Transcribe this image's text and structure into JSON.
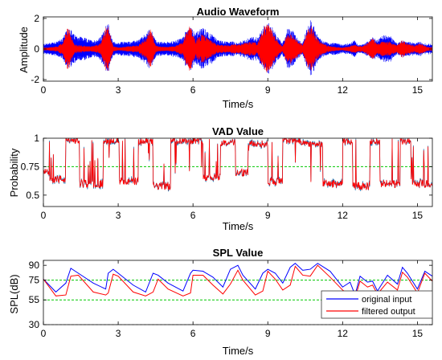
{
  "chart_data": [
    {
      "type": "line",
      "title": "Audio Waveform",
      "xlabel": "Time/s",
      "ylabel": "Amplitude",
      "xlim": [
        0,
        15.6
      ],
      "ylim": [
        -2.1,
        2.1
      ],
      "xticks": [
        0,
        3,
        6,
        9,
        12,
        15
      ],
      "yticks": [
        -2,
        0,
        2
      ],
      "colors": {
        "original": "#0000ff",
        "filtered": "#ff0000"
      },
      "series": [
        {
          "values_note_name": "envelope",
          "t": [
            0.0,
            0.2,
            0.4,
            0.6,
            0.8,
            0.9,
            1.0,
            1.1,
            1.2,
            1.3,
            1.5,
            1.7,
            1.9,
            2.1,
            2.3,
            2.5,
            2.6,
            2.7,
            2.8,
            3.0,
            3.2,
            3.5,
            3.8,
            4.1,
            4.3,
            4.4,
            4.5,
            4.6,
            4.8,
            5.0,
            5.3,
            5.6,
            5.8,
            5.9,
            6.0,
            6.1,
            6.2,
            6.4,
            6.6,
            6.8,
            7.0,
            7.3,
            7.6,
            7.8,
            7.9,
            8.1,
            8.3,
            8.6,
            8.8,
            8.9,
            9.0,
            9.2,
            9.4,
            9.6,
            9.8,
            10.0,
            10.2,
            10.4,
            10.6,
            10.7,
            10.8,
            10.9,
            11.1,
            11.3,
            11.5,
            11.7,
            12.0,
            12.3,
            12.5,
            12.6,
            12.8,
            13.0,
            13.2,
            13.4,
            13.6,
            13.9,
            14.1,
            14.2,
            14.4,
            14.6,
            14.9,
            15.1,
            15.2,
            15.4,
            15.6
          ],
          "blue": [
            0.35,
            0.4,
            0.5,
            0.55,
            0.8,
            1.1,
            1.55,
            1.3,
            1.0,
            0.9,
            0.85,
            0.7,
            0.6,
            0.6,
            0.8,
            1.5,
            1.7,
            1.0,
            0.5,
            0.4,
            0.5,
            0.5,
            0.6,
            1.0,
            1.4,
            1.0,
            0.6,
            0.5,
            0.45,
            0.5,
            0.55,
            0.8,
            1.5,
            1.6,
            1.3,
            1.1,
            1.2,
            1.4,
            1.2,
            0.9,
            0.6,
            0.5,
            0.5,
            0.4,
            0.5,
            0.6,
            0.8,
            0.8,
            1.4,
            1.7,
            1.8,
            1.4,
            0.8,
            0.4,
            1.4,
            1.2,
            0.7,
            0.4,
            1.6,
            1.9,
            1.8,
            1.2,
            0.7,
            0.5,
            0.4,
            0.4,
            0.3,
            0.4,
            0.6,
            0.3,
            0.3,
            0.5,
            0.8,
            0.6,
            0.9,
            0.9,
            0.5,
            0.4,
            0.6,
            0.5,
            0.4,
            0.5,
            0.4,
            0.35,
            0.35
          ],
          "red": [
            0.1,
            0.1,
            0.15,
            0.2,
            0.5,
            1.1,
            1.5,
            1.0,
            0.5,
            0.3,
            0.25,
            0.2,
            0.2,
            0.25,
            0.4,
            1.4,
            1.6,
            0.8,
            0.2,
            0.1,
            0.15,
            0.2,
            0.25,
            0.7,
            1.4,
            0.8,
            0.25,
            0.2,
            0.15,
            0.15,
            0.2,
            0.5,
            1.4,
            1.5,
            1.0,
            0.5,
            0.8,
            1.0,
            0.7,
            0.5,
            0.3,
            0.25,
            0.3,
            0.3,
            0.35,
            0.4,
            0.5,
            0.4,
            1.2,
            1.6,
            1.7,
            1.1,
            0.5,
            0.2,
            1.1,
            1.0,
            0.5,
            0.3,
            1.3,
            1.6,
            1.5,
            0.9,
            0.5,
            0.3,
            0.2,
            0.15,
            0.1,
            0.2,
            0.3,
            0.2,
            0.2,
            0.4,
            0.7,
            0.4,
            0.5,
            0.5,
            0.3,
            0.3,
            0.6,
            0.35,
            0.25,
            0.4,
            0.3,
            0.15,
            0.1
          ]
        }
      ]
    },
    {
      "type": "line",
      "title": "VAD Value",
      "xlabel": "Time/s",
      "ylabel": "Probability",
      "xlim": [
        0,
        15.6
      ],
      "ylim": [
        0.4,
        1.0
      ],
      "xticks": [
        0,
        3,
        6,
        9,
        12,
        15
      ],
      "yticks": [
        0.5,
        0.75,
        1
      ],
      "ytick_labels": [
        "0.5",
        "0.75",
        "1"
      ],
      "threshold": 0.75,
      "colors": {
        "original": "#1f77b4",
        "filtered": "#ff0000",
        "threshold": "#00c800"
      },
      "segments": [
        {
          "t0": 0.0,
          "t1": 0.22,
          "level": 0.7,
          "hi": 0.9
        },
        {
          "t0": 0.22,
          "t1": 0.9,
          "level": 0.64,
          "hi": 0.64
        },
        {
          "t0": 0.9,
          "t1": 1.45,
          "level": 0.98,
          "hi": 0.98
        },
        {
          "t0": 1.45,
          "t1": 2.4,
          "level": 0.6,
          "hi": 0.6
        },
        {
          "t0": 2.4,
          "t1": 3.05,
          "level": 0.98,
          "hi": 0.98
        },
        {
          "t0": 3.05,
          "t1": 3.8,
          "level": 0.62,
          "hi": 0.62
        },
        {
          "t0": 3.8,
          "t1": 4.4,
          "level": 0.97,
          "hi": 0.97
        },
        {
          "t0": 4.4,
          "t1": 5.1,
          "level": 0.58,
          "hi": 0.58
        },
        {
          "t0": 5.1,
          "t1": 6.4,
          "level": 0.98,
          "hi": 0.98
        },
        {
          "t0": 6.4,
          "t1": 7.1,
          "level": 0.66,
          "hi": 0.66
        },
        {
          "t0": 7.1,
          "t1": 7.7,
          "level": 0.96,
          "hi": 0.96
        },
        {
          "t0": 7.7,
          "t1": 8.2,
          "level": 0.7,
          "hi": 0.7
        },
        {
          "t0": 8.2,
          "t1": 9.0,
          "level": 0.95,
          "hi": 0.95
        },
        {
          "t0": 9.0,
          "t1": 9.6,
          "level": 0.62,
          "hi": 0.62
        },
        {
          "t0": 9.6,
          "t1": 10.3,
          "level": 0.98,
          "hi": 0.98
        },
        {
          "t0": 10.3,
          "t1": 11.2,
          "level": 0.95,
          "hi": 0.95
        },
        {
          "t0": 11.2,
          "t1": 12.0,
          "level": 0.6,
          "hi": 0.6
        },
        {
          "t0": 12.0,
          "t1": 12.4,
          "level": 0.97,
          "hi": 0.97
        },
        {
          "t0": 12.4,
          "t1": 13.1,
          "level": 0.58,
          "hi": 0.58
        },
        {
          "t0": 13.1,
          "t1": 13.5,
          "level": 0.97,
          "hi": 0.97
        },
        {
          "t0": 13.5,
          "t1": 14.3,
          "level": 0.6,
          "hi": 0.6
        },
        {
          "t0": 14.3,
          "t1": 14.8,
          "level": 0.97,
          "hi": 0.97
        },
        {
          "t0": 14.8,
          "t1": 15.6,
          "level": 0.6,
          "hi": 0.6
        }
      ]
    },
    {
      "type": "line",
      "title": "SPL Value",
      "xlabel": "Time/s",
      "ylabel": "SPL(dB)",
      "xlim": [
        0,
        15.6
      ],
      "ylim": [
        30,
        95
      ],
      "xticks": [
        0,
        3,
        6,
        9,
        12,
        15
      ],
      "yticks": [
        30,
        55,
        75,
        90
      ],
      "ref_lines": [
        {
          "value": 75,
          "color": "#00c800"
        },
        {
          "value": 55,
          "color": "#00c800"
        },
        {
          "value": 30,
          "color": "#555555"
        }
      ],
      "series": [
        {
          "name": "original input",
          "color": "#0000ff",
          "x": [
            0.0,
            0.5,
            0.9,
            1.1,
            1.4,
            2.0,
            2.5,
            2.6,
            2.8,
            3.0,
            3.6,
            4.1,
            4.4,
            4.6,
            5.0,
            5.6,
            5.9,
            6.0,
            6.4,
            6.8,
            7.2,
            7.5,
            7.8,
            8.0,
            8.5,
            8.8,
            9.0,
            9.3,
            9.6,
            9.9,
            10.1,
            10.4,
            10.7,
            11.0,
            11.5,
            12.0,
            12.3,
            12.5,
            12.7,
            13.0,
            13.2,
            13.4,
            13.8,
            14.2,
            14.4,
            14.6,
            15.0,
            15.3,
            15.6
          ],
          "values": [
            76,
            63,
            72,
            87,
            82,
            72,
            66,
            82,
            86,
            82,
            70,
            63,
            82,
            80,
            72,
            64,
            82,
            85,
            84,
            78,
            68,
            86,
            90,
            80,
            66,
            82,
            86,
            82,
            72,
            88,
            92,
            85,
            86,
            92,
            84,
            68,
            73,
            60,
            79,
            73,
            74,
            64,
            80,
            71,
            88,
            82,
            66,
            84,
            79
          ]
        },
        {
          "name": "filtered output",
          "color": "#ff0000",
          "x": [
            0.0,
            0.5,
            0.9,
            1.1,
            1.4,
            2.0,
            2.5,
            2.6,
            2.8,
            3.0,
            3.6,
            4.1,
            4.4,
            4.6,
            5.0,
            5.6,
            5.9,
            6.0,
            6.4,
            6.8,
            7.2,
            7.5,
            7.8,
            8.0,
            8.5,
            8.8,
            9.0,
            9.3,
            9.6,
            9.9,
            10.1,
            10.4,
            10.7,
            11.0,
            11.5,
            12.0,
            12.3,
            12.5,
            12.7,
            13.0,
            13.2,
            13.4,
            13.8,
            14.2,
            14.4,
            14.6,
            15.0,
            15.3,
            15.6
          ],
          "values": [
            76,
            59,
            60,
            79,
            80,
            63,
            60,
            62,
            81,
            79,
            63,
            59,
            63,
            76,
            66,
            59,
            62,
            80,
            80,
            70,
            61,
            71,
            85,
            75,
            60,
            64,
            84,
            76,
            65,
            70,
            89,
            80,
            79,
            90,
            78,
            65,
            59,
            57,
            74,
            68,
            70,
            61,
            73,
            65,
            83,
            78,
            62,
            82,
            74
          ]
        }
      ]
    }
  ]
}
